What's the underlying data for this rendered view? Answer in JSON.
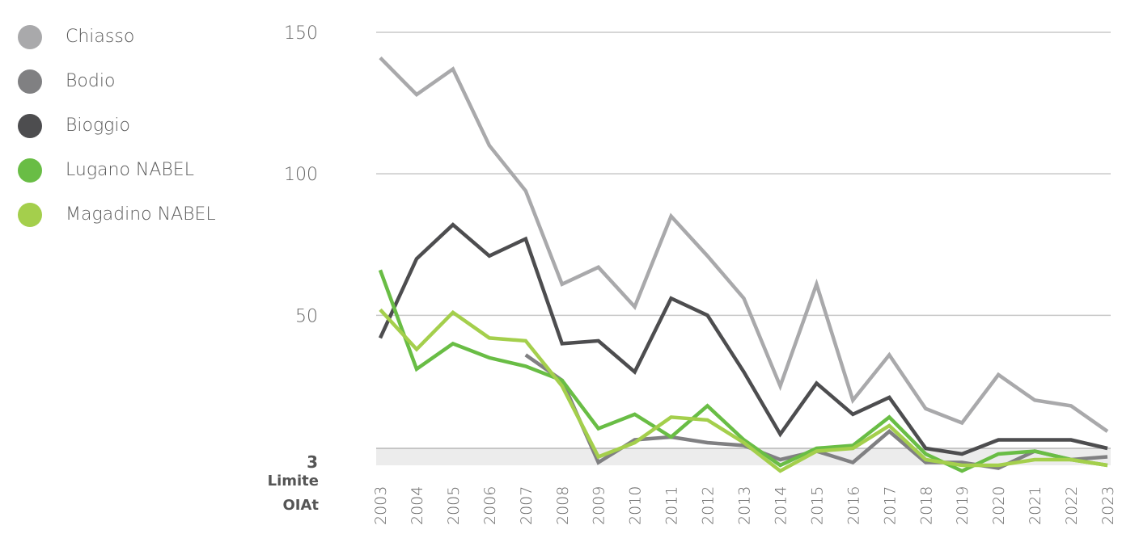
{
  "chart_data": {
    "type": "line",
    "x": [
      "2003",
      "2004",
      "2005",
      "2006",
      "2007",
      "2008",
      "2009",
      "2010",
      "2011",
      "2012",
      "2013",
      "2014",
      "2015",
      "2016",
      "2017",
      "2018",
      "2019",
      "2020",
      "2021",
      "2022",
      "2023"
    ],
    "ylim": [
      -3,
      150
    ],
    "yticks": [
      50,
      100,
      150
    ],
    "reference": {
      "value": 3,
      "label_value": "3",
      "label_line1": "Limite",
      "label_line2": "OIAt",
      "band": [
        0,
        3
      ]
    },
    "grid": true,
    "legend_position": "top-left",
    "series": [
      {
        "name": "Chiasso",
        "color": "#a9a9ab",
        "values": [
          141,
          128,
          137,
          110,
          94,
          61,
          67,
          53,
          85,
          71,
          56,
          25,
          61,
          20,
          36,
          17,
          12,
          29,
          20,
          18,
          9
        ]
      },
      {
        "name": "Bodio",
        "color": "#808082",
        "values": [
          null,
          null,
          null,
          null,
          36,
          27,
          -2,
          6,
          7,
          5,
          4,
          -1,
          2,
          -2,
          9,
          -2,
          -2,
          -4,
          2,
          -1,
          0
        ]
      },
      {
        "name": "Bioggio",
        "color": "#4d4d4f",
        "values": [
          42,
          70,
          82,
          71,
          77,
          40,
          41,
          30,
          56,
          50,
          30,
          8,
          26,
          15,
          21,
          3,
          1,
          6,
          6,
          6,
          3
        ]
      },
      {
        "name": "Lugano NABEL",
        "color": "#69bd45",
        "values": [
          66,
          31,
          40,
          35,
          32,
          27,
          10,
          15,
          7,
          18,
          6,
          -3,
          3,
          4,
          14,
          1,
          -5,
          1,
          2,
          -1,
          -3
        ]
      },
      {
        "name": "Magadino NABEL",
        "color": "#a4cf4c",
        "values": [
          52,
          38,
          51,
          42,
          41,
          25,
          0,
          5,
          14,
          13,
          5,
          -5,
          2,
          3,
          11,
          -1,
          -3,
          -3,
          -1,
          -1,
          -3
        ]
      }
    ]
  }
}
